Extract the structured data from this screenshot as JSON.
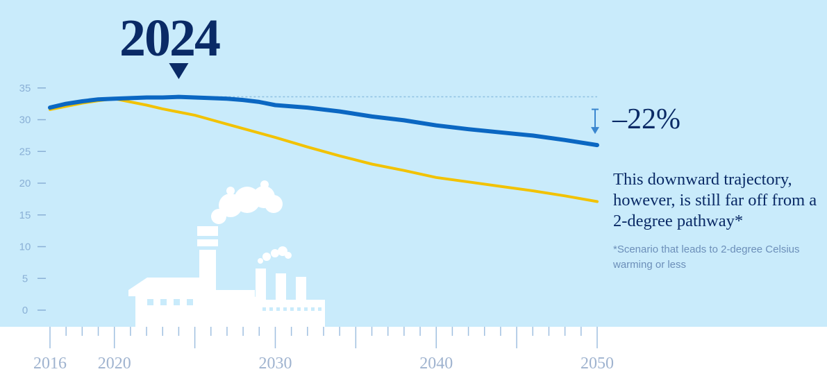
{
  "chart_data": {
    "type": "line",
    "x": [
      2016,
      2017,
      2018,
      2019,
      2020,
      2021,
      2022,
      2023,
      2024,
      2025,
      2026,
      2027,
      2028,
      2029,
      2030,
      2032,
      2034,
      2036,
      2038,
      2040,
      2042,
      2044,
      2046,
      2048,
      2050
    ],
    "series": [
      {
        "values": [
          31.9,
          32.5,
          32.9,
          33.2,
          33.3,
          33.4,
          33.5,
          33.5,
          33.6,
          33.5,
          33.4,
          33.3,
          33.1,
          32.8,
          32.3,
          31.9,
          31.3,
          30.5,
          29.9,
          29.1,
          28.5,
          28.0,
          27.5,
          26.8,
          26.0
        ],
        "color": "#0b67c2"
      },
      {
        "values": [
          31.6,
          32.1,
          32.6,
          33.0,
          33.3,
          32.8,
          32.3,
          31.7,
          31.2,
          30.7,
          30.0,
          29.3,
          28.6,
          27.9,
          27.2,
          25.7,
          24.3,
          23.0,
          22.0,
          20.9,
          20.2,
          19.5,
          18.8,
          18.0,
          17.1
        ],
        "color": "#f2c200"
      }
    ],
    "xticks": [
      "2016",
      "2020",
      "2030",
      "2040",
      "2050"
    ],
    "yticks": [
      "0",
      "5",
      "10",
      "15",
      "20",
      "25",
      "30",
      "35"
    ],
    "ylim": [
      0,
      37
    ],
    "xlim": [
      2016,
      2050
    ],
    "highlight_year": "2024",
    "reference_value": 33.6,
    "change_label": "–22%",
    "annotation": "This downward trajectory, however, is still far off from a 2-degree pathway*",
    "footnote": "*Scenario that leads to 2-degree Celsius warming or less"
  },
  "colors": {
    "background": "#c9ebfb",
    "axis": "#8ab0d6",
    "accent": "#0a2a66",
    "factory": "#ffffff"
  },
  "icons": [
    "down-triangle-icon",
    "down-arrow-icon",
    "factory-icon"
  ]
}
